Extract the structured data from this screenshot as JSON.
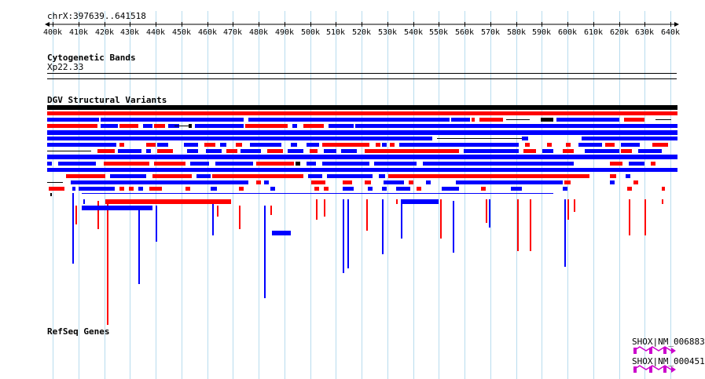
{
  "region": {
    "label": "chrX:397639..641518",
    "start": 397639,
    "end": 641518
  },
  "ruler": {
    "ticks": [
      "400k",
      "410k",
      "420k",
      "430k",
      "440k",
      "450k",
      "460k",
      "470k",
      "480k",
      "490k",
      "500k",
      "510k",
      "520k",
      "530k",
      "540k",
      "550k",
      "560k",
      "570k",
      "580k",
      "590k",
      "600k",
      "610k",
      "620k",
      "630k",
      "640k"
    ]
  },
  "tracks": {
    "cytogenetic": {
      "title": "Cytogenetic Bands",
      "band": "Xp22.33"
    },
    "dgv": {
      "title": "DGV Structural Variants"
    },
    "refseq": {
      "title": "RefSeq Genes",
      "genes": [
        {
          "label": "SHOX|NM_006883"
        },
        {
          "label": "SHOX|NM_000451"
        }
      ]
    }
  },
  "colors": {
    "gain": "#ff0000",
    "loss": "#0000ff",
    "other": "#000000",
    "gene": "#cc00cc",
    "grid": "#b8dcee"
  }
}
